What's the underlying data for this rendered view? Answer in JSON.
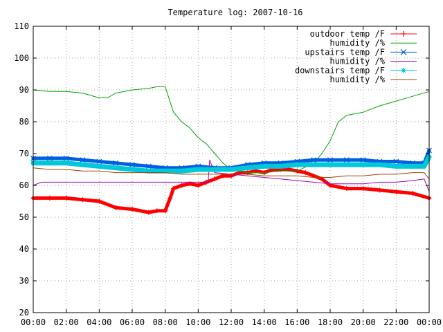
{
  "chart_data": {
    "type": "line",
    "title": "Temperature log: 2007-10-16",
    "xlabel": "",
    "ylabel": "",
    "xlim": [
      0,
      24
    ],
    "ylim": [
      20,
      110
    ],
    "x_ticks": [
      "00:00",
      "02:00",
      "04:00",
      "06:00",
      "08:00",
      "10:00",
      "12:00",
      "14:00",
      "16:00",
      "18:00",
      "20:00",
      "22:00",
      "00:00"
    ],
    "y_ticks": [
      20,
      30,
      40,
      50,
      60,
      70,
      80,
      90,
      100,
      110
    ],
    "grid": true,
    "legend_position": "top-right",
    "series": [
      {
        "name": "outdoor temp /F",
        "color": "#ff0000",
        "marker": "plus",
        "x": [
          0,
          1,
          2,
          3,
          4,
          5,
          6,
          7,
          7.5,
          8,
          8.3,
          8.5,
          9,
          9.5,
          10,
          10.5,
          11,
          11.5,
          12,
          12.5,
          13,
          13.5,
          14,
          14.5,
          15,
          15.5,
          16,
          16.5,
          17,
          17.5,
          18,
          19,
          20,
          21,
          22,
          23,
          24
        ],
        "y": [
          56,
          56,
          56,
          55.5,
          55,
          53,
          52.5,
          51.5,
          52,
          52,
          56,
          59,
          60,
          60.5,
          60,
          61,
          62,
          63,
          63,
          64,
          64,
          64.5,
          64,
          65,
          65,
          65,
          64.5,
          64,
          63,
          62,
          60,
          59,
          59,
          58.5,
          58,
          57.5,
          56
        ]
      },
      {
        "name": "humidity /%",
        "color": "#00a000",
        "marker": "none",
        "x": [
          0,
          1,
          2,
          3,
          4,
          4.5,
          5,
          6,
          7,
          7.5,
          8,
          8.5,
          9,
          9.5,
          10,
          10.5,
          11,
          11.5,
          12,
          12.5,
          13,
          14,
          15,
          16,
          17,
          17.5,
          18,
          18.5,
          19,
          20,
          21,
          22,
          23,
          24
        ],
        "y": [
          90,
          89.5,
          89.5,
          89,
          87.5,
          87.5,
          89,
          90,
          90.5,
          91,
          91,
          83,
          80,
          78,
          75,
          73,
          70,
          67,
          65,
          64.5,
          64,
          64,
          64.5,
          64.5,
          67,
          70,
          74,
          80,
          82,
          83,
          85,
          86.5,
          88,
          89.5
        ]
      },
      {
        "name": "upstairs temp /F",
        "color": "#0060e0",
        "marker": "x",
        "x": [
          0,
          1,
          2,
          3,
          4,
          5,
          6,
          7,
          8,
          9,
          10,
          11,
          12,
          13,
          14,
          15,
          16,
          17,
          18,
          19,
          20,
          21,
          22,
          23,
          23.7,
          24
        ],
        "y": [
          68.5,
          68.5,
          68.5,
          68,
          67.5,
          67,
          66.5,
          66,
          65.5,
          65.5,
          66,
          65.5,
          65.5,
          66.5,
          67,
          67,
          67.5,
          68,
          68,
          68,
          68,
          67.5,
          67.5,
          67,
          67,
          71
        ]
      },
      {
        "name": "humidity /%",
        "color": "#a000c0",
        "marker": "none",
        "x": [
          0,
          0.5,
          1,
          2,
          3,
          4,
          5,
          6,
          7,
          8,
          9,
          10,
          10.6,
          10.7,
          10.9,
          11,
          12,
          13,
          14,
          15,
          16,
          17,
          18,
          19,
          20,
          21,
          22,
          23,
          23.7,
          24
        ],
        "y": [
          60,
          61,
          61,
          61,
          61,
          61,
          61,
          61,
          61,
          61,
          61,
          61,
          61,
          68,
          65,
          64,
          63.5,
          63,
          62.5,
          62,
          61.5,
          61,
          60.5,
          60.5,
          60.5,
          61,
          61,
          61.5,
          62,
          58
        ]
      },
      {
        "name": "downstairs temp /F",
        "color": "#00c8d8",
        "marker": "star",
        "x": [
          0,
          1,
          2,
          3,
          4,
          5,
          6,
          7,
          8,
          9,
          10,
          11,
          12,
          13,
          14,
          15,
          16,
          17,
          18,
          19,
          20,
          21,
          22,
          23,
          23.7,
          24
        ],
        "y": [
          67,
          67,
          67,
          66.5,
          66,
          65.5,
          65,
          64.5,
          64.5,
          64.5,
          65,
          65,
          65,
          65.5,
          66,
          66,
          66.5,
          66.5,
          66.5,
          66.5,
          66.5,
          66.5,
          66,
          66,
          66,
          69
        ]
      },
      {
        "name": "humidity /%",
        "color": "#a04000",
        "marker": "none",
        "x": [
          0,
          1,
          2,
          3,
          4,
          5,
          6,
          7,
          8,
          9,
          10,
          11,
          12,
          13,
          14,
          15,
          16,
          17,
          18,
          19,
          20,
          21,
          22,
          23,
          23.7,
          24
        ],
        "y": [
          65.5,
          65,
          65,
          64.5,
          64.5,
          64,
          64,
          64,
          64,
          63.5,
          63.5,
          63.5,
          63.5,
          63.5,
          63,
          63,
          63,
          62.5,
          62.5,
          63,
          63,
          63.5,
          63.5,
          64,
          64,
          62
        ]
      }
    ]
  }
}
